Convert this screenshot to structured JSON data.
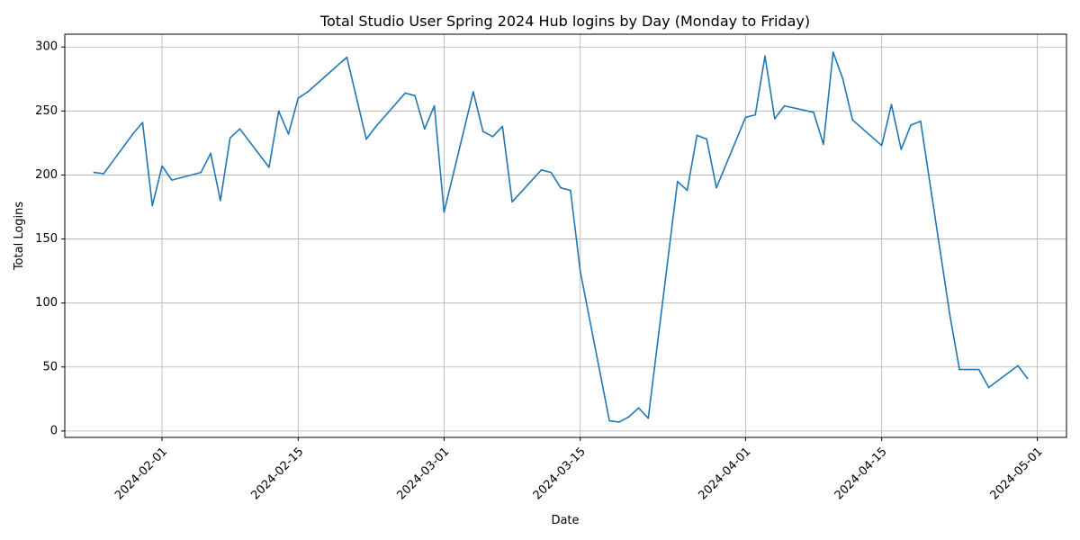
{
  "chart_data": {
    "type": "line",
    "title": "Total Studio User Spring 2024 Hub logins by Day (Monday to Friday)",
    "xlabel": "Date",
    "ylabel": "Total Logins",
    "x_tick_labels": [
      "2024-02-01",
      "2024-02-15",
      "2024-03-01",
      "2024-03-15",
      "2024-04-01",
      "2024-04-15",
      "2024-05-01"
    ],
    "y_tick_labels": [
      "0",
      "50",
      "100",
      "150",
      "200",
      "250",
      "300"
    ],
    "y_ticks": [
      0,
      50,
      100,
      150,
      200,
      250,
      300
    ],
    "xlim": [
      "2024-01-22",
      "2024-05-04"
    ],
    "ylim": [
      -5,
      310
    ],
    "grid": true,
    "line_color": "#1f77b4",
    "series": [
      {
        "x": [
          "2024-01-25",
          "2024-01-26",
          "2024-01-29",
          "2024-01-30",
          "2024-01-31",
          "2024-02-01",
          "2024-02-02",
          "2024-02-05",
          "2024-02-06",
          "2024-02-07",
          "2024-02-08",
          "2024-02-09",
          "2024-02-12",
          "2024-02-13",
          "2024-02-14",
          "2024-02-15",
          "2024-02-16",
          "2024-02-20",
          "2024-02-22",
          "2024-02-23",
          "2024-02-26",
          "2024-02-27",
          "2024-02-28",
          "2024-02-29",
          "2024-03-01",
          "2024-03-04",
          "2024-03-05",
          "2024-03-06",
          "2024-03-07",
          "2024-03-08",
          "2024-03-11",
          "2024-03-12",
          "2024-03-13",
          "2024-03-14",
          "2024-03-15",
          "2024-03-18",
          "2024-03-19",
          "2024-03-20",
          "2024-03-21",
          "2024-03-22",
          "2024-03-25",
          "2024-03-26",
          "2024-03-27",
          "2024-03-28",
          "2024-03-29",
          "2024-04-01",
          "2024-04-02",
          "2024-04-03",
          "2024-04-04",
          "2024-04-05",
          "2024-04-08",
          "2024-04-09",
          "2024-04-10",
          "2024-04-11",
          "2024-04-12",
          "2024-04-15",
          "2024-04-16",
          "2024-04-17",
          "2024-04-18",
          "2024-04-19",
          "2024-04-22",
          "2024-04-23",
          "2024-04-24",
          "2024-04-25",
          "2024-04-26",
          "2024-04-29",
          "2024-04-30"
        ],
        "y": [
          202,
          201,
          232,
          241,
          176,
          207,
          196,
          202,
          217,
          180,
          229,
          236,
          206,
          250,
          232,
          260,
          265,
          292,
          228,
          238,
          264,
          262,
          236,
          254,
          171,
          265,
          234,
          230,
          238,
          179,
          204,
          202,
          190,
          188,
          125,
          8,
          7,
          11,
          18,
          10,
          195,
          188,
          231,
          228,
          190,
          245,
          247,
          293,
          244,
          254,
          249,
          224,
          296,
          275,
          243,
          223,
          255,
          220,
          239,
          242,
          91,
          48,
          48,
          48,
          34,
          51,
          41
        ]
      }
    ]
  }
}
